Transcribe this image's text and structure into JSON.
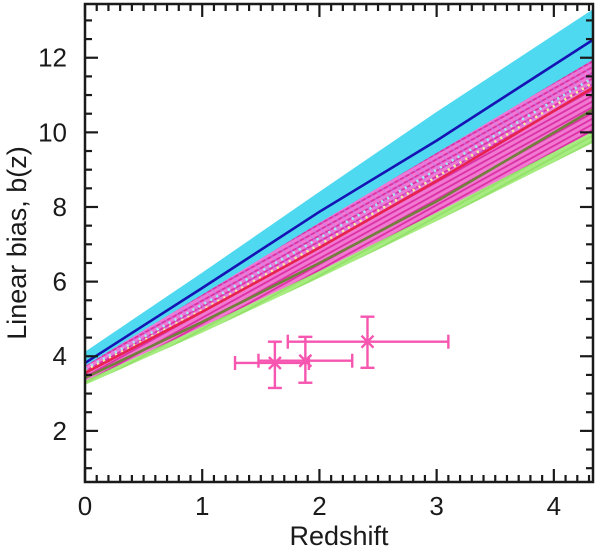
{
  "figure": {
    "xlabel": "Redshift",
    "ylabel": "Linear bias, b(z)",
    "background": "#ffffff",
    "frame_color": "#1a1a1a"
  },
  "axes": {
    "xlim": [
      0,
      4.334
    ],
    "ylim": [
      0.63,
      13.44
    ],
    "x_major_ticks": [
      0,
      1,
      2,
      3,
      4
    ],
    "x_tick_labels": [
      "0",
      "1",
      "2",
      "3",
      "4"
    ],
    "x_minor_step": 0.1,
    "y_major_ticks": [
      2,
      4,
      6,
      8,
      10,
      12
    ],
    "y_tick_labels": [
      "2",
      "4",
      "6",
      "8",
      "10",
      "12"
    ],
    "y_minor_step": 0.5,
    "grid": false,
    "legend": "none"
  },
  "chart_data": {
    "type": "line",
    "title": "",
    "xlabel": "Redshift",
    "ylabel": "Linear bias, b(z)",
    "xlim": [
      0,
      4.334
    ],
    "ylim": [
      0.63,
      13.44
    ],
    "x_samples": [
      0,
      1,
      2,
      3,
      4.334
    ],
    "bands": [
      {
        "name": "cyan-band",
        "style": "solid",
        "color": "#4ED9F0",
        "hatch_color": "#66E2F5",
        "top": [
          4.12,
          6.24,
          8.41,
          10.55,
          13.3
        ],
        "bottom": [
          3.52,
          5.42,
          7.3,
          9.1,
          11.7
        ]
      },
      {
        "name": "green-band",
        "style": "hatch",
        "color": "#A6EC80",
        "hatch_color": "#93E06A",
        "top": [
          3.6,
          5.2,
          6.9,
          8.6,
          11.4
        ],
        "bottom": [
          3.23,
          4.63,
          6.1,
          7.62,
          9.72
        ]
      },
      {
        "name": "magenta-band",
        "style": "hatch",
        "color": "#F279D2",
        "hatch_color": "#DB2FA4",
        "top": [
          3.74,
          5.65,
          7.58,
          9.45,
          11.95
        ],
        "bottom": [
          3.34,
          4.79,
          6.28,
          7.85,
          10.02
        ]
      },
      {
        "name": "lilac-overlay-band",
        "style": "overlay",
        "color": "none",
        "hatch_color": "#C583F0",
        "top": [
          3.74,
          5.65,
          7.58,
          9.45,
          11.95
        ],
        "bottom": [
          3.55,
          5.19,
          6.91,
          8.7,
          11.2
        ]
      }
    ],
    "lines": [
      {
        "name": "pale-cyan-dotted-model",
        "color": "#A5E9F2",
        "dash": "dotted",
        "width": 2.6,
        "values": [
          3.66,
          5.38,
          7.17,
          9.0,
          11.46
        ]
      },
      {
        "name": "pale-yellow-dotted-model",
        "color": "#F3F0A2",
        "dash": "dotted",
        "width": 2.6,
        "values": [
          3.61,
          5.24,
          6.99,
          8.81,
          11.33
        ]
      },
      {
        "name": "blue-model",
        "color": "#1513B4",
        "dash": "solid",
        "width": 2.6,
        "values": [
          3.82,
          5.83,
          7.87,
          9.78,
          12.48
        ]
      },
      {
        "name": "red-model",
        "color": "#E7224E",
        "dash": "solid",
        "width": 2.6,
        "values": [
          3.55,
          5.19,
          6.91,
          8.7,
          11.2
        ]
      },
      {
        "name": "olive-model",
        "color": "#71803A",
        "dash": "solid",
        "width": 2.6,
        "values": [
          3.42,
          4.92,
          6.5,
          8.15,
          10.61
        ]
      }
    ],
    "points": {
      "name": "measured-bias-points",
      "color": "#F655B0",
      "marker": "x-cross-with-error-bars",
      "data": [
        {
          "z": 1.62,
          "z_lo": 1.28,
          "z_hi": 1.91,
          "b": 3.82,
          "b_lo": 3.15,
          "b_hi": 4.39
        },
        {
          "z": 1.88,
          "z_lo": 1.48,
          "z_hi": 2.28,
          "b": 3.88,
          "b_lo": 3.29,
          "b_hi": 4.52
        },
        {
          "z": 2.41,
          "z_lo": 1.73,
          "z_hi": 3.1,
          "b": 4.39,
          "b_lo": 3.69,
          "b_hi": 5.06
        }
      ]
    }
  }
}
